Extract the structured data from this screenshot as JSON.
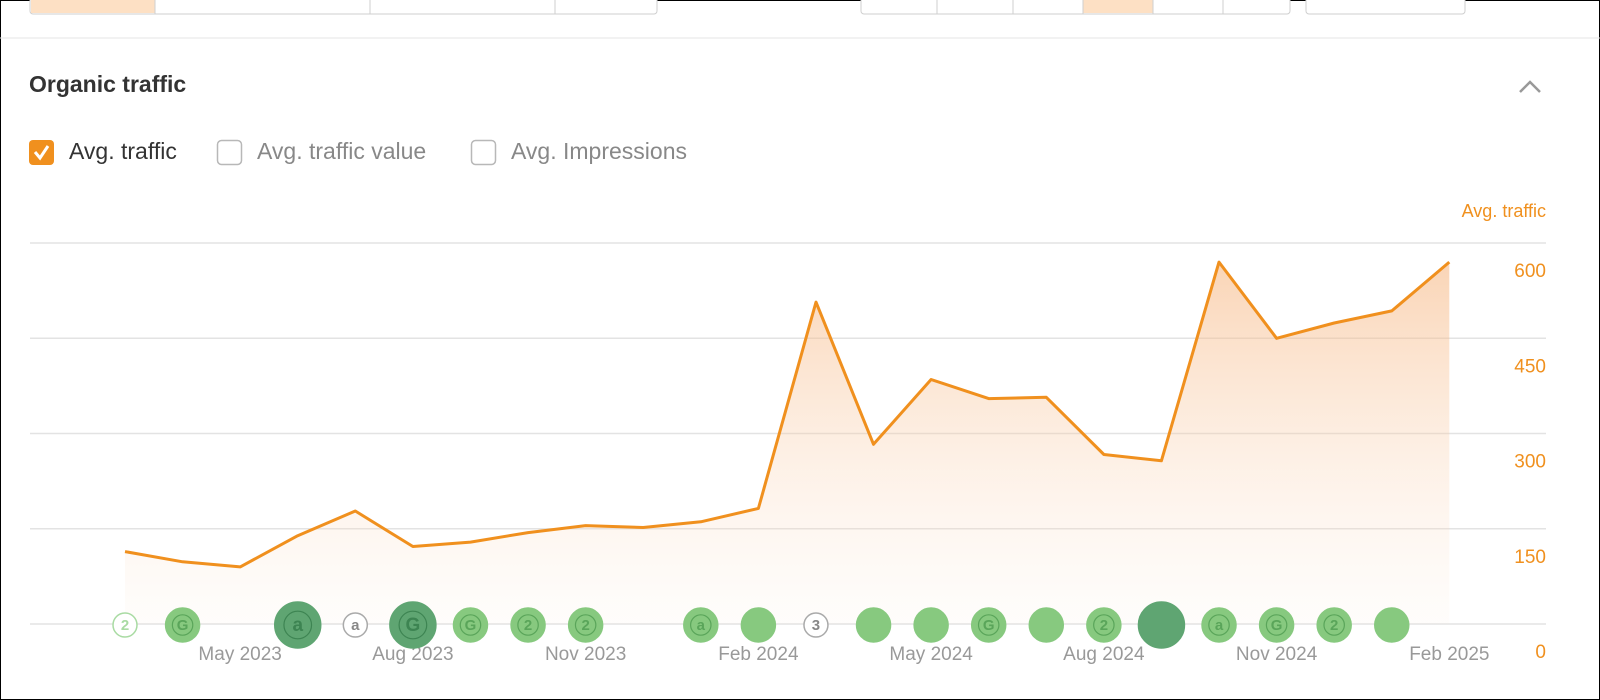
{
  "header": {
    "title": "Organic traffic"
  },
  "metrics": [
    {
      "label": "Avg. traffic",
      "checked": true
    },
    {
      "label": "Avg. traffic value",
      "checked": false
    },
    {
      "label": "Avg. Impressions",
      "checked": false
    }
  ],
  "chart_data": {
    "type": "area",
    "y_axis_title": "Avg. traffic",
    "color": "#f0901e",
    "categories": [
      null,
      null,
      "May 2023",
      null,
      null,
      "Aug 2023",
      null,
      null,
      "Nov 2023",
      null,
      null,
      "Feb 2024",
      null,
      null,
      "May 2024",
      null,
      null,
      "Aug 2024",
      null,
      null,
      "Nov 2024",
      null,
      null,
      "Feb 2025"
    ],
    "values": [
      114,
      98,
      90,
      139,
      178,
      122,
      129,
      144,
      155,
      152,
      161,
      182,
      507,
      283,
      385,
      355,
      357,
      267,
      257,
      570,
      450,
      474,
      493,
      570
    ],
    "ylim": [
      0,
      600
    ],
    "yticks": [
      0,
      150,
      300,
      450,
      600
    ],
    "grid": true,
    "events": {
      "positions": [
        0,
        1,
        3,
        4,
        5,
        6,
        7,
        8,
        10,
        11,
        12,
        13,
        14,
        15,
        16,
        17,
        18,
        19,
        20,
        21,
        22
      ],
      "labels": [
        "2",
        "G",
        "a",
        "a",
        "G",
        "G",
        "2",
        "2",
        "a",
        null,
        "3",
        null,
        null,
        "G",
        null,
        "2",
        null,
        "a",
        "G",
        "2",
        null
      ],
      "styles": [
        "faint",
        "light",
        "dark",
        "outline",
        "dark",
        "light",
        "light",
        "light",
        "light",
        "light",
        "outline",
        "light",
        "light",
        "light",
        "light",
        "light",
        "dark",
        "light",
        "light",
        "light",
        "light"
      ]
    }
  }
}
